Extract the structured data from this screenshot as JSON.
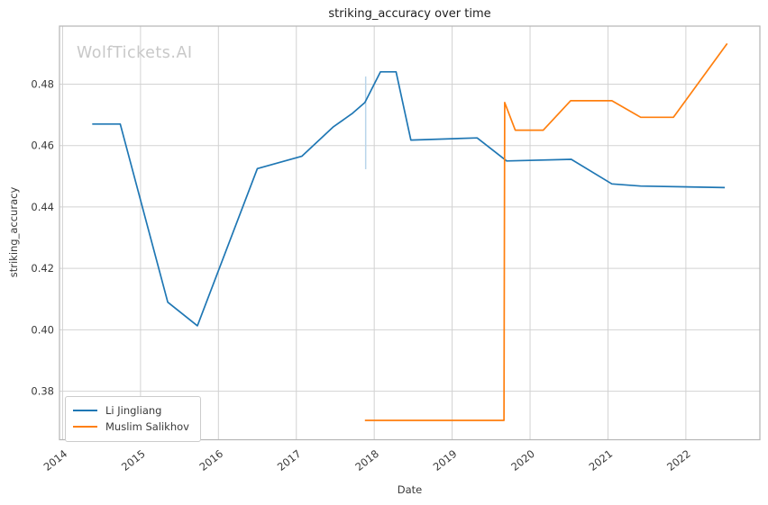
{
  "figure": {
    "title": "striking_accuracy over time",
    "watermark": "WolfTickets.AI",
    "xlabel": "Date",
    "ylabel": "striking_accuracy"
  },
  "chart_data": {
    "type": "line",
    "title": "striking_accuracy over time",
    "xlabel": "Date",
    "ylabel": "striking_accuracy",
    "grid": true,
    "legend_position": "lower-left",
    "xlim": [
      2013.96,
      2022.95
    ],
    "ylim": [
      0.3642,
      0.4989
    ],
    "x_tick_values": [
      2014,
      2015,
      2016,
      2017,
      2018,
      2019,
      2020,
      2021,
      2022
    ],
    "x_tick_labels": [
      "2014",
      "2015",
      "2016",
      "2017",
      "2018",
      "2019",
      "2020",
      "2021",
      "2022"
    ],
    "y_tick_values": [
      0.38,
      0.4,
      0.42,
      0.44,
      0.46,
      0.48
    ],
    "y_tick_labels": [
      "0.38",
      "0.40",
      "0.42",
      "0.44",
      "0.46",
      "0.48"
    ],
    "series": [
      {
        "name": "Li Jingliang",
        "color": "#1f77b4",
        "points": [
          [
            2014.38,
            0.467
          ],
          [
            2014.74,
            0.467
          ],
          [
            2015.35,
            0.409
          ],
          [
            2015.73,
            0.4013
          ],
          [
            2016.5,
            0.4525
          ],
          [
            2017.07,
            0.4565
          ],
          [
            2017.47,
            0.466
          ],
          [
            2017.72,
            0.4705
          ],
          [
            2017.88,
            0.474
          ],
          [
            2018.08,
            0.484
          ],
          [
            2018.28,
            0.484
          ],
          [
            2018.47,
            0.4618
          ],
          [
            2019.32,
            0.4625
          ],
          [
            2019.7,
            0.455
          ],
          [
            2020.53,
            0.4555
          ],
          [
            2021.05,
            0.4475
          ],
          [
            2021.42,
            0.4468
          ],
          [
            2022.5,
            0.4463
          ]
        ]
      },
      {
        "name": "Muslim Salikhov",
        "color": "#ff7f0e",
        "points": [
          [
            2017.88,
            0.3705
          ],
          [
            2019.665,
            0.3705
          ],
          [
            2019.675,
            0.474
          ],
          [
            2019.81,
            0.465
          ],
          [
            2020.17,
            0.465
          ],
          [
            2020.52,
            0.4746
          ],
          [
            2021.05,
            0.4746
          ],
          [
            2021.42,
            0.4692
          ],
          [
            2021.84,
            0.4692
          ],
          [
            2022.53,
            0.4932
          ]
        ]
      }
    ],
    "annotations": [
      {
        "type": "vertical-segment",
        "x": 2017.89,
        "y_from": 0.4523,
        "y_to": 0.4825,
        "color": "#b9d5ea"
      }
    ],
    "style": {
      "grid_color": "#d2d2d2",
      "spine_color": "#b5b5b5",
      "tick_label_color": "#3a3a3a",
      "line_width": 1.7
    }
  }
}
